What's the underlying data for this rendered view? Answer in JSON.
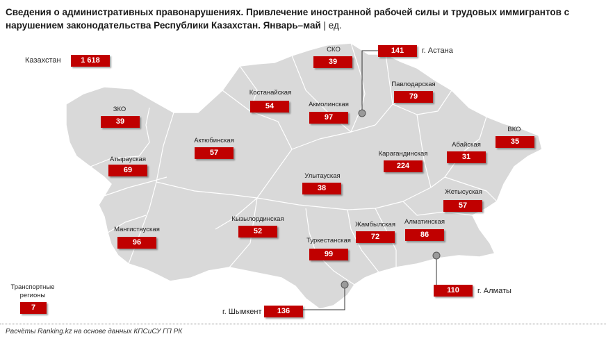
{
  "title": {
    "main": "Сведения о административных правонарушениях. Привлечение иностранной рабочей силы и трудовых иммигрантов с нарушением законодательства Республики Казахстан. Январь–май",
    "unit": " | ед."
  },
  "colors": {
    "badge": "#c00000",
    "land": "#d9d9d9",
    "border": "#ffffff"
  },
  "total": {
    "label": "Казахстан",
    "value": "1 618"
  },
  "regions": [
    {
      "id": "zko",
      "name": "ЗКО",
      "value": "39"
    },
    {
      "id": "atyrau",
      "name": "Атырауская",
      "value": "69"
    },
    {
      "id": "mangistau",
      "name": "Мангистауская",
      "value": "96"
    },
    {
      "id": "aktobe",
      "name": "Актюбинская",
      "value": "57"
    },
    {
      "id": "kostanay",
      "name": "Костанайская",
      "value": "54"
    },
    {
      "id": "sko",
      "name": "СКО",
      "value": "39"
    },
    {
      "id": "akmola",
      "name": "Акмолинская",
      "value": "97"
    },
    {
      "id": "pavlodar",
      "name": "Павлодарская",
      "value": "79"
    },
    {
      "id": "vko",
      "name": "ВКО",
      "value": "35"
    },
    {
      "id": "abay",
      "name": "Абайская",
      "value": "31"
    },
    {
      "id": "karaganda",
      "name": "Карагандинская",
      "value": "224"
    },
    {
      "id": "ulytau",
      "name": "Улытауская",
      "value": "38"
    },
    {
      "id": "kyzylorda",
      "name": "Кызылординская",
      "value": "52"
    },
    {
      "id": "turkestan",
      "name": "Туркестанская",
      "value": "99"
    },
    {
      "id": "zhambyl",
      "name": "Жамбылская",
      "value": "72"
    },
    {
      "id": "almaty-region",
      "name": "Алматинская",
      "value": "86"
    },
    {
      "id": "zhetysu",
      "name": "Жетысуская",
      "value": "57"
    }
  ],
  "cities": [
    {
      "id": "astana",
      "name": "г. Астана",
      "value": "141"
    },
    {
      "id": "almaty",
      "name": "г. Алматы",
      "value": "110"
    },
    {
      "id": "shymkent",
      "name": "г. Шымкент",
      "value": "136"
    }
  ],
  "transport": {
    "label": "Транспортные регионы",
    "value": "7"
  },
  "footer": "Расчёты Ranking.kz на основе данных КПСиСУ ГП РК"
}
